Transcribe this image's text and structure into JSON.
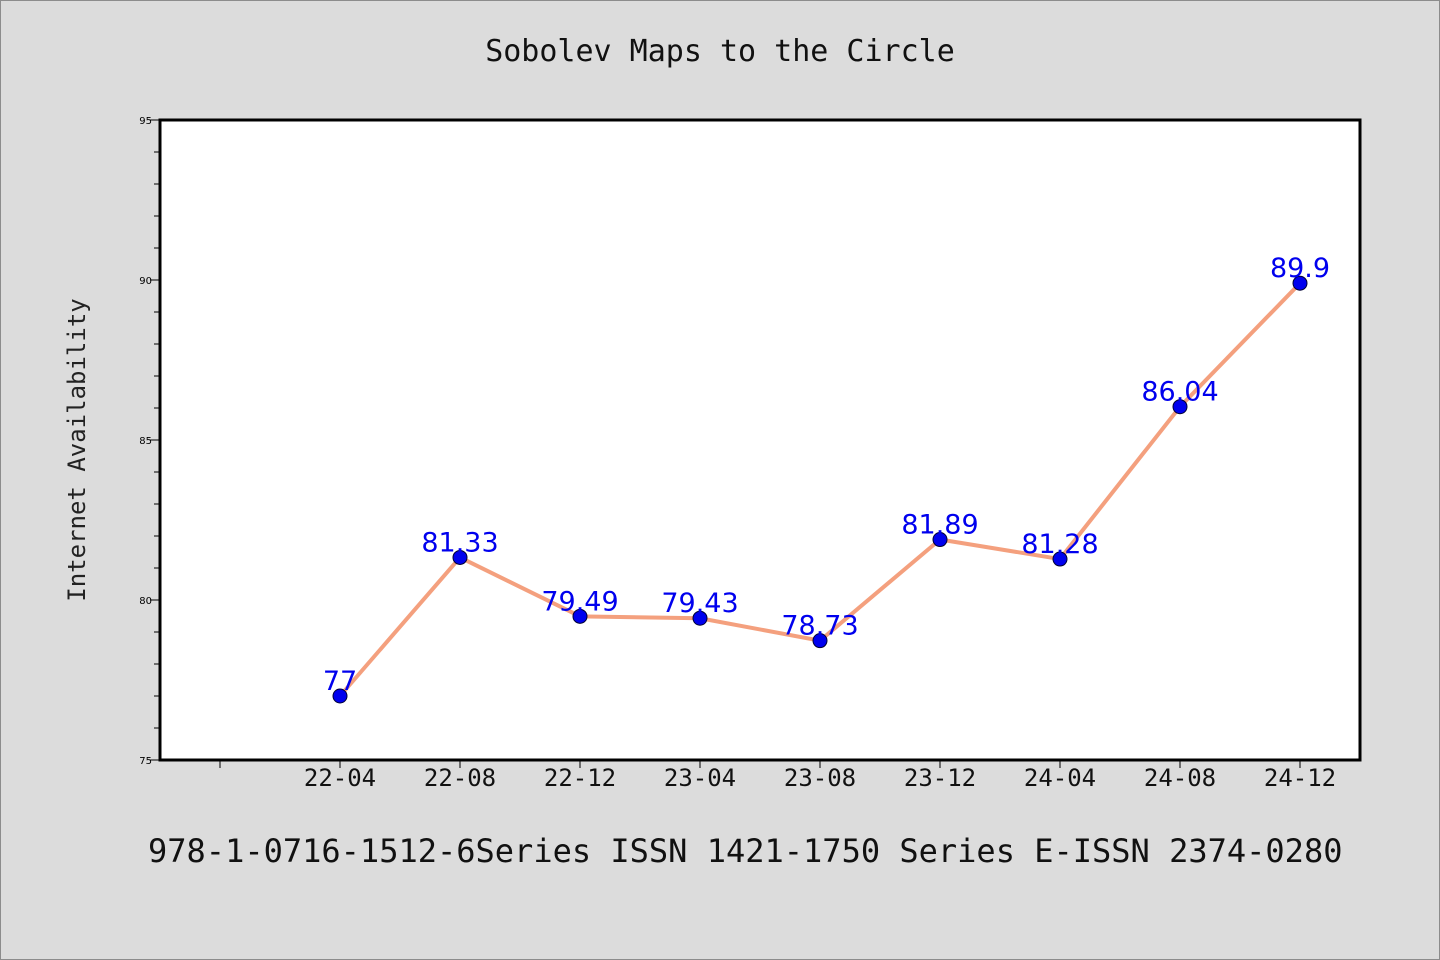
{
  "chart_data": {
    "type": "line",
    "title": "Sobolev Maps to the Circle",
    "xlabel": "",
    "ylabel": "Internet Availability",
    "categories": [
      "22-04",
      "22-08",
      "22-12",
      "23-04",
      "23-08",
      "23-12",
      "24-04",
      "24-08",
      "24-12"
    ],
    "series": [
      {
        "values": [
          77,
          81.33,
          79.49,
          79.43,
          78.73,
          81.89,
          81.28,
          86.04,
          89.9
        ],
        "data_labels": [
          "77",
          "81.33",
          "79.49",
          "79.43",
          "78.73",
          "81.89",
          "81.28",
          "86.04",
          "89.9"
        ],
        "line_color": "#f4a07e",
        "marker_color": "#0000ee",
        "label_color": "#0000ee"
      }
    ],
    "ylim": [
      75,
      95
    ],
    "yticks": [
      "75",
      "80",
      "85",
      "90",
      "95"
    ],
    "grid": false,
    "legend": "none"
  },
  "footer_text": "978-1-0716-1512-6Series ISSN 1421-1750 Series E-ISSN 2374-0280",
  "colors": {
    "background": "#dcdcdc",
    "plot_area": "#ffffff"
  }
}
